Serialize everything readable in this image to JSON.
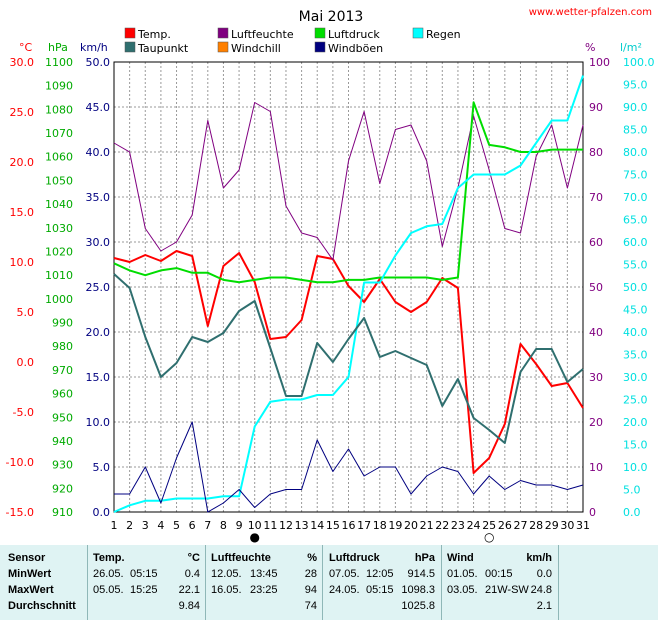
{
  "chart_data": {
    "type": "line",
    "title": "Mai 2013",
    "watermark": "www.wetter-pfalzen.com",
    "x": [
      1,
      2,
      3,
      4,
      5,
      6,
      7,
      8,
      9,
      10,
      11,
      12,
      13,
      14,
      15,
      16,
      17,
      18,
      19,
      20,
      21,
      22,
      23,
      24,
      25,
      26,
      27,
      28,
      29,
      30,
      31
    ],
    "x_ticks": [
      "1",
      "2",
      "3",
      "4",
      "5",
      "6",
      "7",
      "8",
      "9",
      "10",
      "11",
      "12",
      "13",
      "14",
      "15",
      "16",
      "17",
      "18",
      "19",
      "20",
      "21",
      "22",
      "23",
      "24",
      "25",
      "26",
      "27",
      "28",
      "29",
      "30",
      "31"
    ],
    "grid": true,
    "axes": {
      "temp": {
        "unit": "°C",
        "range": [
          -15,
          30
        ],
        "ticks": [
          "-15.0",
          "-10.0",
          "-5.0",
          "0.0",
          "5.0",
          "10.0",
          "15.0",
          "20.0",
          "25.0",
          "30.0"
        ],
        "color": "#ff0000"
      },
      "pressure": {
        "unit": "hPa",
        "range": [
          910,
          1100
        ],
        "ticks": [
          "910",
          "920",
          "930",
          "940",
          "950",
          "960",
          "970",
          "980",
          "990",
          "1000",
          "1010",
          "1020",
          "1030",
          "1040",
          "1050",
          "1060",
          "1070",
          "1080",
          "1090",
          "1100"
        ],
        "color": "#00aa00"
      },
      "wind": {
        "unit": "km/h",
        "range": [
          0,
          50
        ],
        "ticks": [
          "0.0",
          "5.0",
          "10.0",
          "15.0",
          "20.0",
          "25.0",
          "30.0",
          "35.0",
          "40.0",
          "45.0",
          "50.0"
        ],
        "color": "#000080"
      },
      "humidity": {
        "unit": "%",
        "range": [
          0,
          100
        ],
        "ticks": [
          "0",
          "10",
          "20",
          "30",
          "40",
          "50",
          "60",
          "70",
          "80",
          "90",
          "100"
        ],
        "color": "#800080"
      },
      "rain": {
        "unit": "l/m²",
        "range": [
          0,
          100
        ],
        "ticks": [
          "0.0",
          "5.0",
          "10.0",
          "15.0",
          "20.0",
          "25.0",
          "30.0",
          "35.0",
          "40.0",
          "45.0",
          "50.0",
          "55.0",
          "60.0",
          "65.0",
          "70.0",
          "75.0",
          "80.0",
          "85.0",
          "90.0",
          "95.0",
          "100.0"
        ],
        "color": "#00e0e0"
      }
    },
    "legend": [
      {
        "name": "Temp.",
        "color": "#ff0000"
      },
      {
        "name": "Luftfeuchte",
        "color": "#800080"
      },
      {
        "name": "Luftdruck",
        "color": "#00dd00"
      },
      {
        "name": "Regen",
        "color": "#00ffff"
      },
      {
        "name": "Taupunkt",
        "color": "#2f6f6f"
      },
      {
        "name": "Windchill",
        "color": "#ff8000"
      },
      {
        "name": "Windböen",
        "color": "#000080"
      }
    ],
    "series": [
      {
        "name": "Temp.",
        "axis": "temp",
        "color": "#ff0000",
        "width": 2,
        "values": [
          10.4,
          10.0,
          10.7,
          10.1,
          11.1,
          10.6,
          3.6,
          9.6,
          10.9,
          8.0,
          2.3,
          2.5,
          4.2,
          10.6,
          10.3,
          7.6,
          6.0,
          8.3,
          6.0,
          5.0,
          6.0,
          8.4,
          7.4,
          -11.1,
          -9.6,
          -6.2,
          1.8,
          -0.2,
          -2.4,
          -2.1,
          -4.6
        ]
      },
      {
        "name": "Luftfeuchte",
        "axis": "humidity",
        "color": "#800080",
        "width": 1,
        "values": [
          82,
          80,
          63,
          58,
          60,
          66,
          87,
          72,
          76,
          91,
          89,
          68,
          62,
          61,
          56,
          78,
          89,
          73,
          85,
          86,
          78,
          59,
          72,
          88,
          76,
          63,
          62,
          79,
          86,
          72,
          86
        ]
      },
      {
        "name": "Luftdruck",
        "axis": "pressure",
        "color": "#00dd00",
        "width": 2,
        "values": [
          1015,
          1012,
          1010,
          1012,
          1013,
          1011,
          1011,
          1008,
          1007,
          1008,
          1009,
          1009,
          1008,
          1007,
          1007,
          1008,
          1008,
          1009,
          1009,
          1009,
          1009,
          1008,
          1009,
          1083,
          1065,
          1064,
          1062,
          1062,
          1063,
          1063,
          1063
        ]
      },
      {
        "name": "Regen",
        "axis": "rain",
        "color": "#00ffff",
        "width": 2,
        "values": [
          0,
          1.5,
          2.5,
          2.5,
          3,
          3,
          3,
          3.5,
          3.5,
          19,
          24.5,
          25,
          25,
          26,
          26,
          30,
          51,
          51,
          57,
          62,
          63.5,
          64,
          72,
          75,
          75,
          75,
          77,
          82,
          87,
          87,
          97
        ]
      },
      {
        "name": "Taupunkt",
        "axis": "temp",
        "color": "#2f6f6f",
        "width": 2,
        "values": [
          8.8,
          7.4,
          2.5,
          -1.5,
          -0.1,
          2.5,
          2.0,
          2.9,
          5.1,
          6.1,
          1.4,
          -3.4,
          -3.4,
          1.9,
          0.0,
          2.3,
          4.4,
          0.5,
          1.1,
          0.4,
          -0.3,
          -4.4,
          -1.7,
          -5.6,
          -6.8,
          -8.1,
          -1.0,
          1.3,
          1.3,
          -2.0,
          -0.7
        ]
      },
      {
        "name": "Windböen",
        "axis": "wind",
        "color": "#000080",
        "width": 1,
        "values": [
          2,
          2,
          5,
          1,
          6,
          10,
          0,
          1,
          2.5,
          0.5,
          2,
          2.5,
          2.5,
          8,
          4.5,
          7,
          4,
          5,
          5,
          2,
          4,
          5,
          4.5,
          2,
          4,
          2.5,
          3.5,
          3,
          3,
          2.5,
          3
        ]
      }
    ],
    "markers": [
      {
        "x": 10,
        "symbol": "●"
      },
      {
        "x": 25,
        "symbol": "○"
      }
    ]
  },
  "stats": {
    "headers": {
      "sensor": "Sensor",
      "temp": "Temp.",
      "temp_unit": "°C",
      "hum": "Luftfeuchte",
      "hum_unit": "%",
      "press": "Luftdruck",
      "press_unit": "hPa",
      "wind": "Wind",
      "wind_unit": "km/h"
    },
    "rows": [
      {
        "label": "MinWert",
        "t_date": "26.05.",
        "t_time": "05:15",
        "t_val": "0.4",
        "h_date": "12.05.",
        "h_time": "13:45",
        "h_val": "28",
        "p_date": "07.05.",
        "p_time": "12:05",
        "p_val": "914.5",
        "w_date": "01.05.",
        "w_time": "00:15",
        "w_val": "0.0"
      },
      {
        "label": "MaxWert",
        "t_date": "05.05.",
        "t_time": "15:25",
        "t_val": "22.1",
        "h_date": "16.05.",
        "h_time": "23:25",
        "h_val": "94",
        "p_date": "24.05.",
        "p_time": "05:15",
        "p_val": "1098.3",
        "w_date": "03.05.",
        "w_time": "21W-SW",
        "w_val": "24.8"
      },
      {
        "label": "Durchschnitt",
        "t_date": "",
        "t_time": "",
        "t_val": "9.84",
        "h_date": "",
        "h_time": "",
        "h_val": "74",
        "p_date": "",
        "p_time": "",
        "p_val": "1025.8",
        "w_date": "",
        "w_time": "",
        "w_val": "2.1"
      }
    ]
  }
}
